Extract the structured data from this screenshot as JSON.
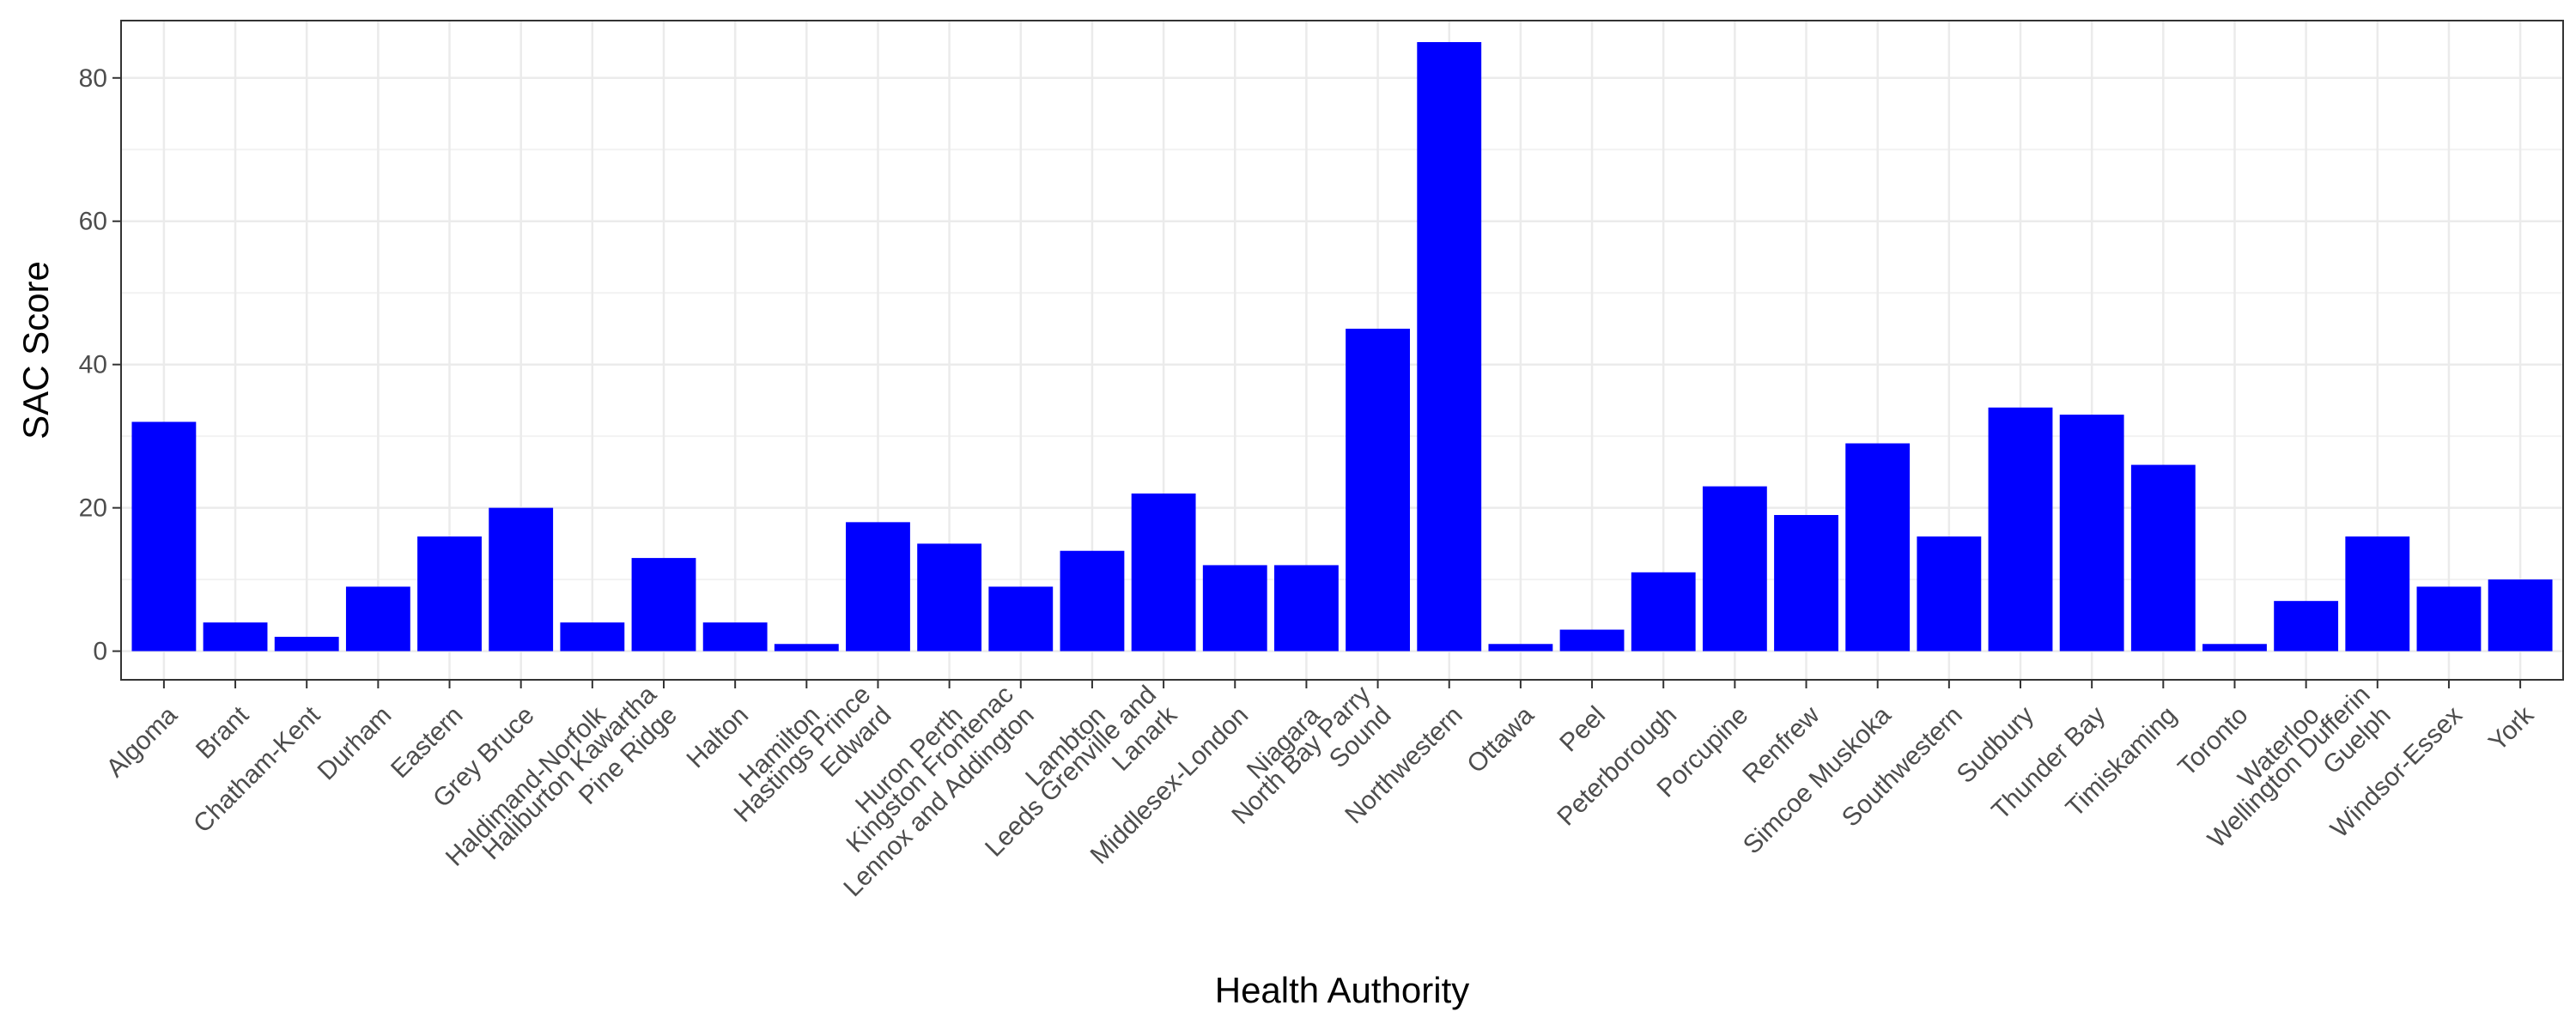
{
  "chart_data": {
    "type": "bar",
    "title": "",
    "xlabel": "Health Authority",
    "ylabel": "SAC Score",
    "ylim": [
      -4,
      88
    ],
    "yticks": [
      0,
      20,
      40,
      60,
      80
    ],
    "grid": true,
    "legend": "none",
    "bar_color": "#0000ff",
    "categories": [
      "Algoma",
      "Brant",
      "Chatham-Kent",
      "Durham",
      "Eastern",
      "Grey Bruce",
      "Haldimand-Norfolk",
      "Haliburton Kawartha\nPine Ridge",
      "Halton",
      "Hamilton",
      "Hastings Prince\nEdward",
      "Huron Perth",
      "Kingston Frontenac\nLennox and Addington",
      "Lambton",
      "Leeds Grenville and\nLanark",
      "Middlesex-London",
      "Niagara",
      "North Bay Parry\nSound",
      "Northwestern",
      "Ottawa",
      "Peel",
      "Peterborough",
      "Porcupine",
      "Renfrew",
      "Simcoe Muskoka",
      "Southwestern",
      "Sudbury",
      "Thunder Bay",
      "Timiskaming",
      "Toronto",
      "Waterloo",
      "Wellington Dufferin\nGuelph",
      "Windsor-Essex",
      "York"
    ],
    "values": [
      32,
      4,
      2,
      9,
      16,
      20,
      4,
      13,
      4,
      1,
      18,
      15,
      9,
      14,
      22,
      12,
      12,
      45,
      85,
      1,
      3,
      11,
      23,
      19,
      29,
      16,
      34,
      33,
      26,
      1,
      7,
      16,
      9,
      10
    ]
  }
}
